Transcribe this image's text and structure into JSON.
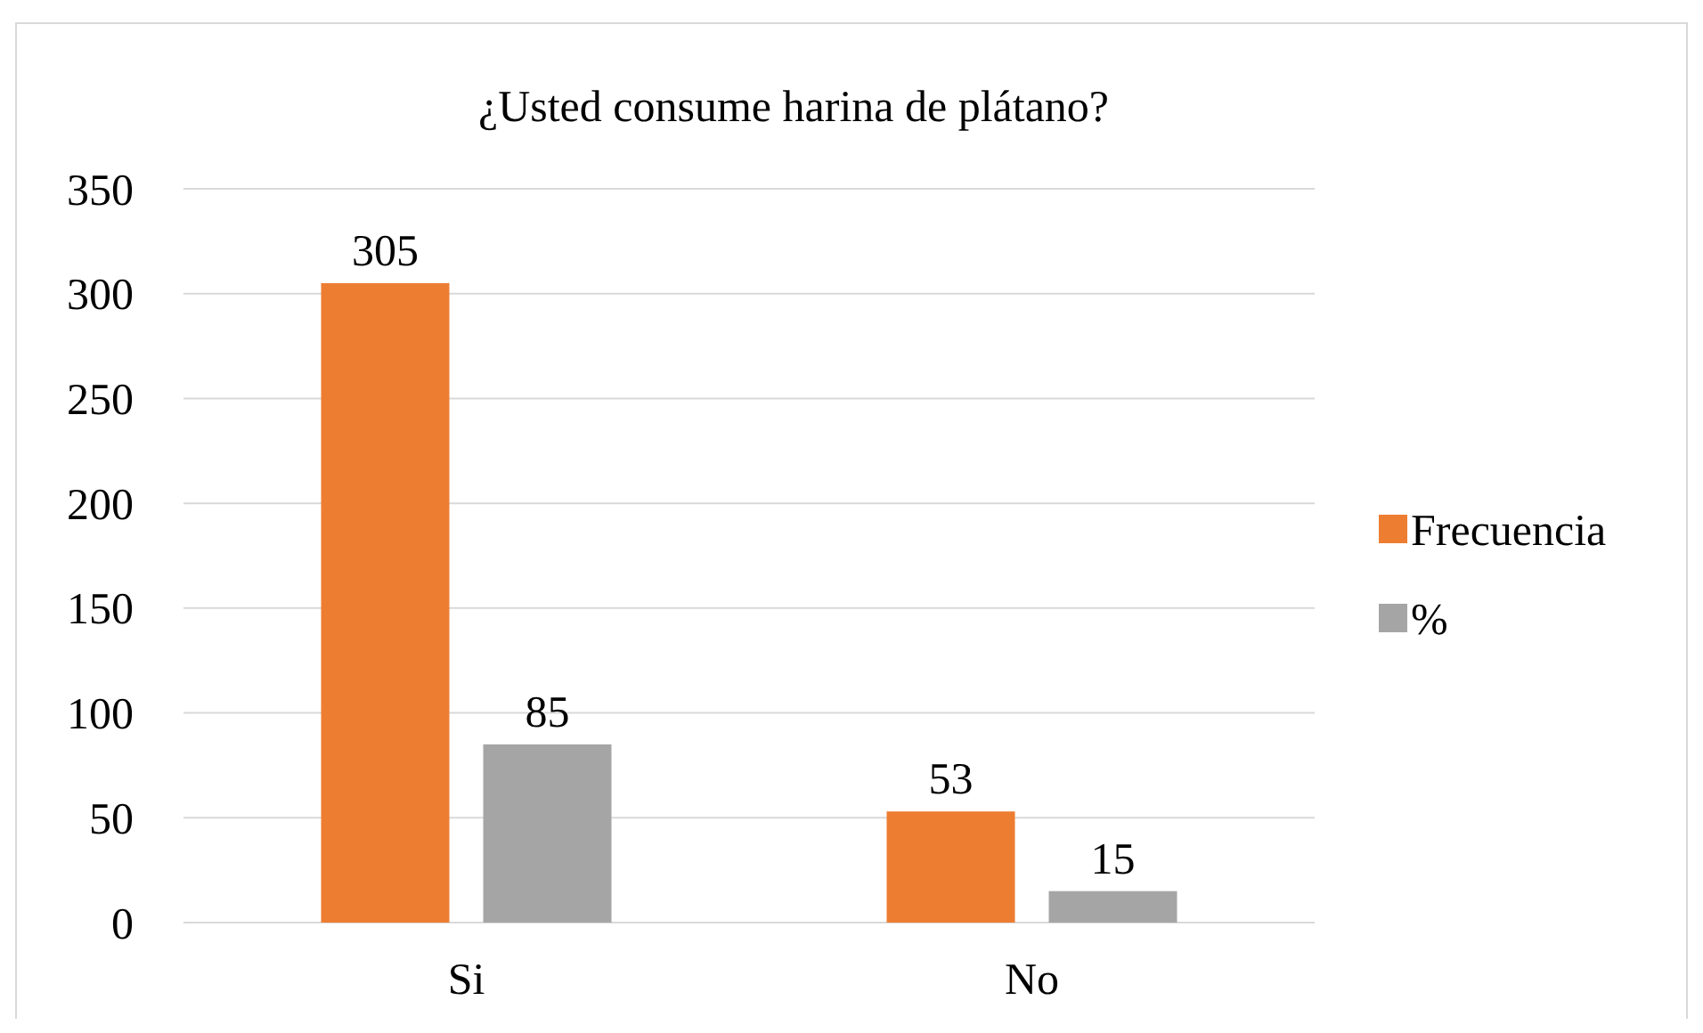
{
  "chart_data": {
    "type": "bar",
    "title": "¿Usted consume harina de plátano?",
    "categories": [
      "Si",
      "No"
    ],
    "series": [
      {
        "name": "Frecuencia",
        "color": "#ed7d31",
        "values": [
          305,
          53
        ]
      },
      {
        "name": "%",
        "color": "#a5a5a5",
        "values": [
          85,
          15
        ]
      }
    ],
    "ylim": [
      0,
      350
    ],
    "yticks": [
      0,
      50,
      100,
      150,
      200,
      250,
      300,
      350
    ],
    "grid": "y",
    "legend": "right",
    "data_labels": true
  }
}
